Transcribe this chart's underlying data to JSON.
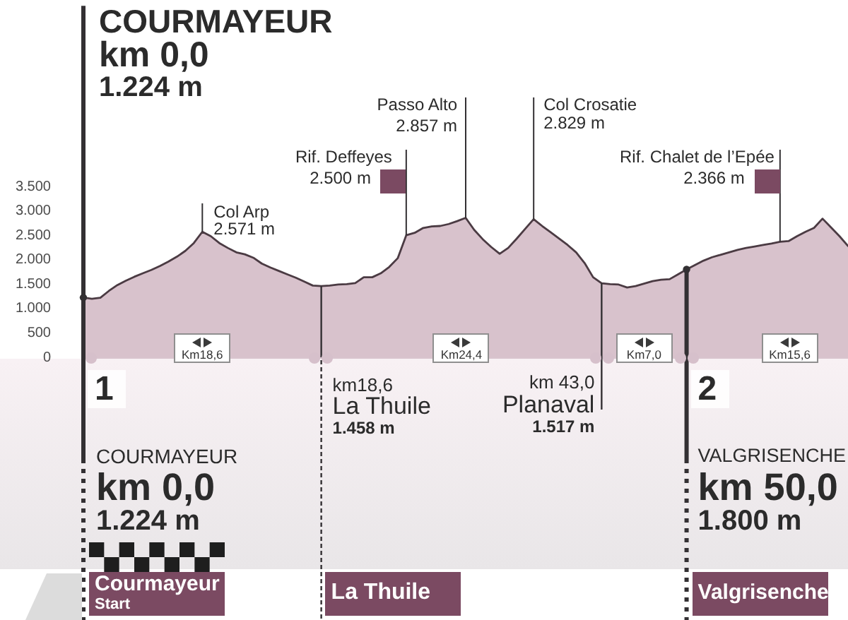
{
  "chart_data": {
    "type": "area",
    "color": "#d8c2cc",
    "categories": [
      null,
      null,
      null,
      null,
      null,
      null,
      null,
      null,
      null,
      null,
      null,
      null,
      null,
      null,
      null,
      null,
      null,
      null,
      null,
      null,
      null,
      null,
      null,
      null,
      null,
      null,
      null,
      null,
      null,
      null,
      null,
      null,
      null,
      null,
      null,
      null,
      null,
      null,
      null,
      null,
      null,
      null,
      null,
      null,
      null,
      null,
      null,
      null,
      null,
      null,
      null,
      null,
      null,
      null,
      null,
      null,
      null,
      null,
      null,
      null,
      null,
      null,
      null,
      null,
      null,
      null,
      null,
      null,
      null,
      null,
      null,
      null,
      null,
      null,
      null,
      null,
      null,
      null,
      null,
      null,
      null,
      null,
      null,
      null,
      null,
      null,
      null,
      null,
      null,
      null,
      null
    ],
    "values": [
      1224,
      1200,
      1220,
      1360,
      1480,
      1570,
      1650,
      1720,
      1790,
      1870,
      1960,
      2060,
      2180,
      2340,
      2571,
      2480,
      2340,
      2240,
      2150,
      2110,
      2040,
      1920,
      1840,
      1770,
      1700,
      1630,
      1550,
      1470,
      1458,
      1470,
      1490,
      1500,
      1520,
      1640,
      1640,
      1720,
      1850,
      2030,
      2500,
      2550,
      2650,
      2680,
      2690,
      2730,
      2790,
      2857,
      2610,
      2420,
      2260,
      2120,
      2240,
      2430,
      2630,
      2829,
      2690,
      2560,
      2430,
      2300,
      2150,
      1930,
      1640,
      1517,
      1500,
      1490,
      1430,
      1460,
      1510,
      1560,
      1590,
      1600,
      1700,
      1800,
      1890,
      1980,
      2050,
      2100,
      2150,
      2200,
      2240,
      2270,
      2300,
      2330,
      2366,
      2380,
      2480,
      2570,
      2650,
      2840,
      2660,
      2480,
      2280
    ],
    "ylim": [
      0,
      7200
    ],
    "yticks": [
      0,
      500,
      {
        "value": 1000,
        "label": "1.000"
      },
      {
        "value": 1500,
        "label": "1.500"
      },
      {
        "value": 2000,
        "label": "2.000"
      },
      {
        "value": 2500,
        "label": "2.500"
      },
      {
        "value": 3000,
        "label": "3.000"
      },
      {
        "value": 3500,
        "label": "3.500"
      }
    ],
    "tick_labels": "y",
    "annotations": [
      "COURMAYEUR\nkm 0,0\n1.224 m",
      "Col Arp\n2.571 m",
      "Rif. Deffeyes\n2.500 m",
      "Passo Alto\n2.857 m",
      "Col Crosatie\n2.829 m",
      "Rif. Chalet de l’Epée\n2.366 m",
      "km18,6\nLa Thuile\n1.458 m",
      "km 43,0\nPlanaval\n1.517 m",
      "COURMAYEUR\nkm 0,0\n1.224 m",
      "VALGRISENCHE\nkm 50,0\n1.800 m",
      "1",
      "2",
      "Km18,6",
      "Km24,4",
      "Km7,0",
      "Km15,6",
      "Courmayeur\nStart",
      "La Thuile",
      "Valgrisenche"
    ]
  }
}
